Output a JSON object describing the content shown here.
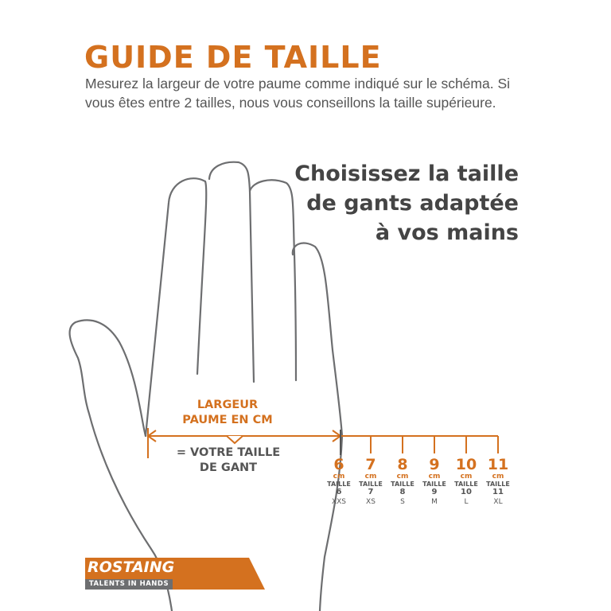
{
  "title": "GUIDE DE TAILLE",
  "intro": "Mesurez la largeur de votre paume comme indiqué sur le schéma. Si vous êtes entre 2 tailles, nous vous conseillons la taille supérieure.",
  "headline": [
    "Choisissez la taille",
    "de gants adaptée",
    "à vos mains"
  ],
  "measure_label": [
    "LARGEUR",
    "PAUME EN CM"
  ],
  "equals_label": [
    "= VOTRE TAILLE",
    "DE GANT"
  ],
  "unit": "cm",
  "size_word": "TAILLE",
  "sizes": [
    {
      "cm": "6",
      "taille": "6",
      "letter": "XXS"
    },
    {
      "cm": "7",
      "taille": "7",
      "letter": "XS"
    },
    {
      "cm": "8",
      "taille": "8",
      "letter": "S"
    },
    {
      "cm": "9",
      "taille": "9",
      "letter": "M"
    },
    {
      "cm": "10",
      "taille": "10",
      "letter": "L"
    },
    {
      "cm": "11",
      "taille": "11",
      "letter": "XL"
    }
  ],
  "logo": {
    "brand": "ROSTAING",
    "tagline": "TALENTS IN HANDS"
  },
  "colors": {
    "accent": "#d4711f",
    "text": "#555555",
    "outline": "#6d6e70"
  }
}
